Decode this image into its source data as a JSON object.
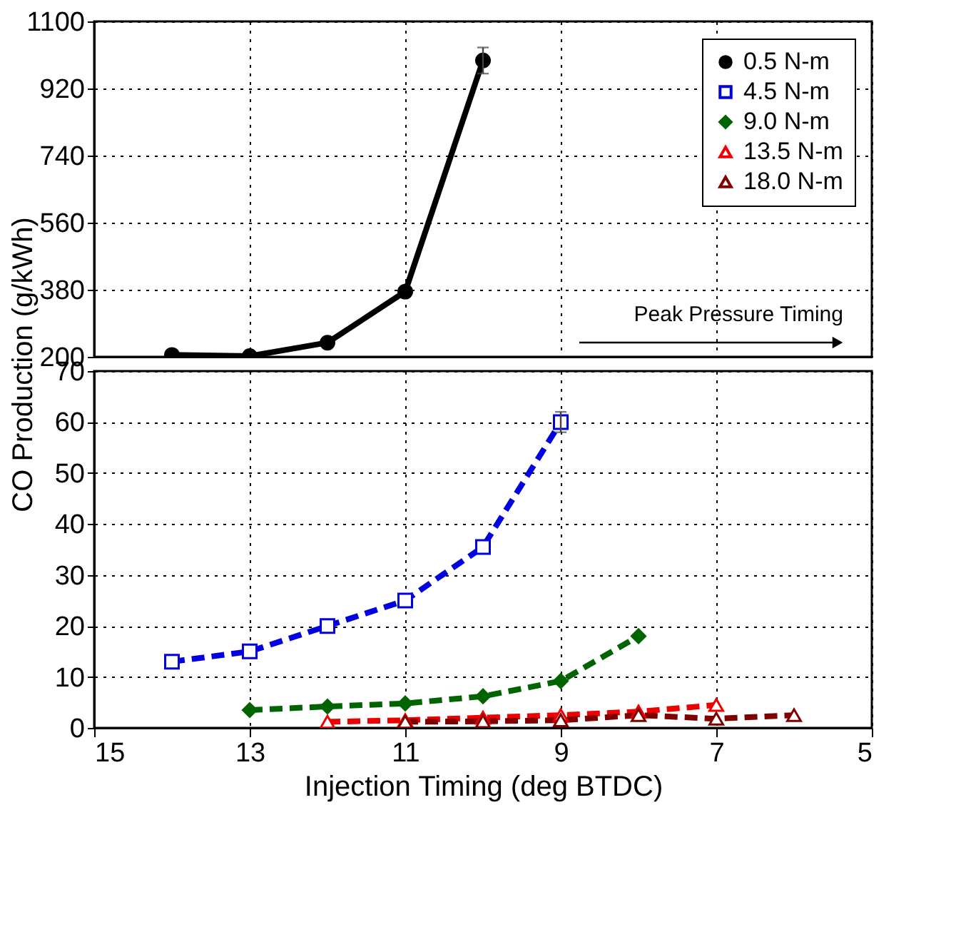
{
  "chart_data": [
    {
      "type": "line",
      "xlim": [
        15,
        5
      ],
      "xticks": [
        15,
        13,
        11,
        9,
        7,
        5
      ],
      "ylim": [
        200,
        1100
      ],
      "yticks": [
        200,
        380,
        560,
        740,
        920,
        {
          "value": 1100,
          "label": "1100"
        }
      ],
      "grid": true,
      "legend": "top right",
      "tick_labels": "y",
      "annotations": [
        "Peak Pressure Timing"
      ],
      "series": [
        {
          "name": "0.5 N-m",
          "color": "#000000",
          "marker": "circle",
          "line_style": "solid",
          "x": [
            14,
            13,
            12,
            11,
            10
          ],
          "values": [
            205,
            202,
            238,
            375,
            995
          ],
          "errors": [
            null,
            null,
            null,
            null,
            35
          ]
        }
      ]
    },
    {
      "type": "line",
      "xlabel": "Injection Timing (deg BTDC)",
      "ylabel": "CO Production (g/kWh)",
      "xlim": [
        15,
        5
      ],
      "xticks": [
        15,
        13,
        11,
        9,
        7,
        5
      ],
      "ylim": [
        0,
        70
      ],
      "yticks": [
        0,
        10,
        20,
        30,
        40,
        50,
        60,
        70
      ],
      "grid": true,
      "legend": "top right",
      "series": [
        {
          "name": "4.5 N-m",
          "color": "#0000e0",
          "marker": "square",
          "line_style": "dashed",
          "x": [
            14,
            13,
            12,
            11,
            10,
            9
          ],
          "values": [
            13,
            15,
            20,
            25,
            35.5,
            60
          ],
          "errors": [
            null,
            null,
            null,
            null,
            null,
            2
          ]
        },
        {
          "name": "9.0 N-m",
          "color": "#006400",
          "marker": "diamond",
          "line_style": "dashed",
          "x": [
            13,
            12,
            11,
            10,
            9,
            8
          ],
          "values": [
            3.5,
            4.2,
            4.8,
            6.2,
            9.2,
            18
          ]
        },
        {
          "name": "13.5 N-m",
          "color": "#ee0000",
          "marker": "triangle",
          "line_style": "dashed",
          "x": [
            12,
            11,
            10,
            9,
            8,
            7
          ],
          "values": [
            1.2,
            1.5,
            2,
            2.5,
            3.2,
            4.5
          ]
        },
        {
          "name": "18.0 N-m",
          "color": "#800000",
          "marker": "triangle",
          "line_style": "dashed",
          "x": [
            11,
            10,
            9,
            8,
            7,
            6
          ],
          "values": [
            1.2,
            1.3,
            1.5,
            2.5,
            1.8,
            2.5
          ]
        }
      ]
    }
  ]
}
